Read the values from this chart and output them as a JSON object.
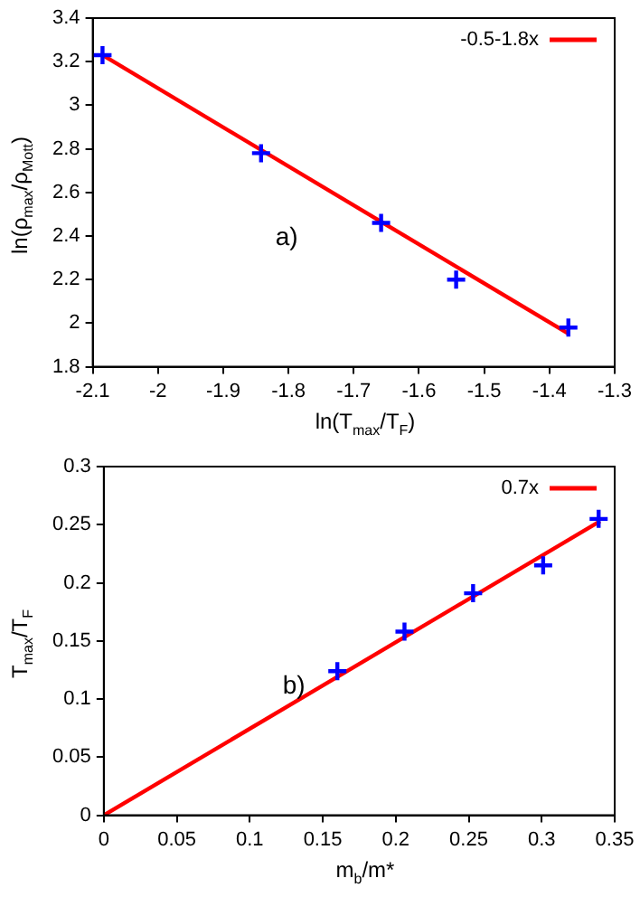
{
  "chart_data": [
    {
      "type": "scatter",
      "xlabel": "ln(T$_{max}$/T$_{F}$)",
      "ylabel": "ln(ρ$_{max}$/ρ$_{Mott}$)",
      "annotations": [
        "a)"
      ],
      "xlim": [
        -2.1,
        -1.3
      ],
      "xticks": [
        -2.1,
        -2,
        -1.9,
        -1.8,
        -1.7,
        -1.6,
        -1.5,
        -1.4,
        -1.3
      ],
      "ylim": [
        1.8,
        3.4
      ],
      "yticks": [
        1.8,
        2,
        2.2,
        2.4,
        2.6,
        2.8,
        3,
        3.2,
        3.4
      ],
      "grid": false,
      "legend": "top right",
      "series": [
        {
          "type": "line",
          "name": "-0.5-1.8x",
          "color": "#ff0000",
          "marker": "none",
          "x": [
            -2.085,
            -1.37
          ],
          "values": [
            3.23,
            1.95
          ]
        },
        {
          "type": "scatter",
          "color": "#0000ff",
          "marker": "cross",
          "x": [
            -2.085,
            -1.842,
            -1.658,
            -1.543,
            -1.371
          ],
          "values": [
            3.23,
            2.78,
            2.46,
            2.2,
            1.98
          ]
        }
      ]
    },
    {
      "type": "scatter",
      "xlabel": "m$_{b}$/m*",
      "ylabel": "T$_{max}$/T$_{F}$",
      "annotations": [
        "b)"
      ],
      "xlim": [
        0,
        0.35
      ],
      "xticks": [
        0,
        0.05,
        0.1,
        0.15,
        0.2,
        0.25,
        0.3,
        0.35
      ],
      "ylim": [
        0,
        0.3
      ],
      "yticks": [
        0,
        0.05,
        0.1,
        0.15,
        0.2,
        0.25,
        0.3
      ],
      "grid": false,
      "legend": "top right",
      "series": [
        {
          "type": "line",
          "name": "0.7x",
          "color": "#ff0000",
          "marker": "none",
          "x": [
            0,
            0.34
          ],
          "values": [
            0,
            0.253
          ]
        },
        {
          "type": "scatter",
          "color": "#0000ff",
          "marker": "cross",
          "x": [
            0.16,
            0.206,
            0.253,
            0.301,
            0.339
          ],
          "values": [
            0.124,
            0.158,
            0.191,
            0.215,
            0.255
          ]
        }
      ]
    }
  ]
}
